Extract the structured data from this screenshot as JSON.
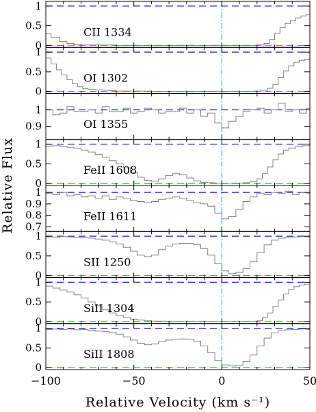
{
  "chart_data": {
    "type": "line",
    "xlabel": "Relative Velocity (km s⁻¹)",
    "ylabel": "Relative Flux",
    "xlim": [
      -100,
      50
    ],
    "x_ticks": [
      "−100",
      "−50",
      "0",
      "50"
    ],
    "x_tick_values": [
      -100,
      -50,
      0,
      50
    ],
    "zero_velocity_marker": 0,
    "colors": {
      "continuum": "#1a1acc",
      "zero_flux": "#22cc22",
      "velocity_marker": "#00cccc",
      "spectrum": "#808080",
      "frame": "#000000"
    },
    "panels": [
      {
        "label": "CII 1334",
        "ylim": [
          -0.05,
          1.12
        ],
        "yticks": [
          0,
          0.5,
          1
        ],
        "yticklabels": [
          "0",
          "0.5",
          "1"
        ],
        "x": [
          -100,
          -97,
          -92,
          -88,
          -84,
          -80,
          -70,
          -60,
          -50,
          -40,
          -30,
          -20,
          -10,
          0,
          10,
          20,
          24,
          27,
          30,
          33,
          36,
          39,
          42,
          45,
          48,
          50
        ],
        "y": [
          0.3,
          0.2,
          0.1,
          0.05,
          0.02,
          0.01,
          0.01,
          0.0,
          0.0,
          0.0,
          0.0,
          0.0,
          0.0,
          0.0,
          0.0,
          0.01,
          0.05,
          0.15,
          0.3,
          0.45,
          0.56,
          0.64,
          0.7,
          0.75,
          0.79,
          0.82
        ]
      },
      {
        "label": "OI 1302",
        "ylim": [
          -0.05,
          1.12
        ],
        "yticks": [
          0,
          0.5,
          1
        ],
        "yticklabels": [
          "0",
          "0.5",
          "1"
        ],
        "x": [
          -100,
          -97,
          -94,
          -91,
          -88,
          -85,
          -82,
          -79,
          -76,
          -72,
          -68,
          -64,
          -60,
          -50,
          -40,
          -30,
          -20,
          -10,
          0,
          10,
          18,
          22,
          26,
          29,
          32,
          35,
          38,
          41,
          44,
          47,
          50
        ],
        "y": [
          0.85,
          0.7,
          0.55,
          0.42,
          0.3,
          0.2,
          0.12,
          0.07,
          0.05,
          0.04,
          0.03,
          0.02,
          0.01,
          0.01,
          0.0,
          0.0,
          0.0,
          0.0,
          0.0,
          0.0,
          0.01,
          0.03,
          0.08,
          0.18,
          0.35,
          0.52,
          0.65,
          0.74,
          0.79,
          0.82,
          0.84
        ]
      },
      {
        "label": "OI 1355",
        "ylim": [
          0.82,
          1.1
        ],
        "yticks": [
          0.9,
          1
        ],
        "yticklabels": [
          "0.9",
          "1"
        ],
        "x": [
          -100,
          -96,
          -92,
          -88,
          -84,
          -80,
          -76,
          -72,
          -68,
          -64,
          -60,
          -56,
          -52,
          -48,
          -44,
          -40,
          -36,
          -32,
          -28,
          -24,
          -20,
          -16,
          -12,
          -8,
          -4,
          0,
          4,
          8,
          12,
          16,
          20,
          24,
          28,
          32,
          36,
          40,
          44,
          48,
          50
        ],
        "y": [
          1.0,
          0.97,
          0.98,
          1.02,
          0.99,
          0.99,
          1.0,
          0.98,
          1.02,
          0.99,
          0.99,
          1.01,
          0.98,
          0.99,
          1.01,
          1.0,
          0.98,
          0.99,
          0.99,
          1.01,
          0.98,
          1.0,
          0.96,
          0.98,
          0.92,
          0.89,
          0.93,
          0.96,
          0.99,
          1.0,
          1.01,
          0.98,
          1.0,
          1.04,
          0.99,
          1.0,
          0.98,
          1.01,
          1.0
        ]
      },
      {
        "label": "FeII 1608",
        "ylim": [
          -0.05,
          1.12
        ],
        "yticks": [
          0,
          0.5,
          1
        ],
        "yticklabels": [
          "0",
          "0.5",
          "1"
        ],
        "x": [
          -100,
          -96,
          -92,
          -88,
          -84,
          -80,
          -76,
          -72,
          -68,
          -64,
          -60,
          -56,
          -52,
          -48,
          -44,
          -40,
          -36,
          -32,
          -28,
          -24,
          -20,
          -16,
          -12,
          -8,
          -4,
          0,
          4,
          8,
          12,
          16,
          20,
          23,
          26,
          29,
          32,
          35,
          38,
          42,
          46,
          50
        ],
        "y": [
          0.95,
          0.96,
          0.94,
          0.92,
          0.9,
          0.85,
          0.8,
          0.74,
          0.67,
          0.58,
          0.5,
          0.4,
          0.28,
          0.16,
          0.08,
          0.06,
          0.12,
          0.2,
          0.25,
          0.22,
          0.14,
          0.07,
          0.03,
          0.02,
          0.01,
          0.01,
          0.01,
          0.01,
          0.02,
          0.05,
          0.12,
          0.25,
          0.42,
          0.6,
          0.75,
          0.85,
          0.9,
          0.94,
          0.96,
          0.97
        ]
      },
      {
        "label": "FeII 1611",
        "ylim": [
          0.66,
          1.06
        ],
        "yticks": [
          0.7,
          0.8,
          0.9,
          1
        ],
        "yticklabels": [
          "0.7",
          "0.8",
          "0.9",
          "1"
        ],
        "x": [
          -100,
          -96,
          -92,
          -88,
          -84,
          -80,
          -76,
          -72,
          -68,
          -64,
          -60,
          -56,
          -52,
          -48,
          -44,
          -40,
          -36,
          -32,
          -28,
          -24,
          -20,
          -16,
          -12,
          -8,
          -4,
          0,
          4,
          8,
          12,
          16,
          20,
          24,
          28,
          32,
          36,
          40,
          44,
          48,
          50
        ],
        "y": [
          0.99,
          0.98,
          1.0,
          0.97,
          0.98,
          0.96,
          0.97,
          0.95,
          0.97,
          0.94,
          0.96,
          0.95,
          0.93,
          0.92,
          0.91,
          0.92,
          0.94,
          0.95,
          0.96,
          0.95,
          0.93,
          0.91,
          0.9,
          0.88,
          0.82,
          0.77,
          0.79,
          0.85,
          0.92,
          0.96,
          0.99,
          0.98,
          1.0,
          0.99,
          1.01,
          0.98,
          1.0,
          0.99,
          1.0
        ]
      },
      {
        "label": "SII 1250",
        "ylim": [
          -0.05,
          1.12
        ],
        "yticks": [
          0,
          0.5,
          1
        ],
        "yticklabels": [
          "0",
          "0.5",
          "1"
        ],
        "x": [
          -100,
          -96,
          -92,
          -88,
          -84,
          -80,
          -76,
          -72,
          -68,
          -64,
          -60,
          -56,
          -52,
          -48,
          -44,
          -40,
          -36,
          -32,
          -28,
          -24,
          -20,
          -16,
          -12,
          -8,
          -4,
          0,
          4,
          8,
          12,
          16,
          20,
          24,
          28,
          32,
          36,
          40,
          44,
          48,
          50
        ],
        "y": [
          0.98,
          0.97,
          0.99,
          0.98,
          0.97,
          0.96,
          0.95,
          0.93,
          0.9,
          0.86,
          0.8,
          0.72,
          0.62,
          0.52,
          0.48,
          0.52,
          0.66,
          0.75,
          0.8,
          0.82,
          0.82,
          0.78,
          0.68,
          0.52,
          0.3,
          0.12,
          0.05,
          0.08,
          0.18,
          0.35,
          0.58,
          0.78,
          0.9,
          0.95,
          0.97,
          0.98,
          0.99,
          0.98,
          0.99
        ]
      },
      {
        "label": "SiII 1304",
        "ylim": [
          -0.05,
          1.12
        ],
        "yticks": [
          0,
          0.5,
          1
        ],
        "yticklabels": [
          "0",
          "0.5",
          "1"
        ],
        "x": [
          -100,
          -96,
          -92,
          -88,
          -84,
          -80,
          -76,
          -72,
          -68,
          -64,
          -60,
          -56,
          -52,
          -48,
          -44,
          -40,
          -36,
          -32,
          -28,
          -24,
          -20,
          -10,
          0,
          10,
          20,
          23,
          26,
          29,
          32,
          35,
          38,
          41,
          44,
          47,
          50
        ],
        "y": [
          0.9,
          0.85,
          0.8,
          0.75,
          0.68,
          0.6,
          0.5,
          0.4,
          0.3,
          0.22,
          0.15,
          0.1,
          0.06,
          0.04,
          0.02,
          0.01,
          0.01,
          0.0,
          0.0,
          0.0,
          0.0,
          0.0,
          0.0,
          0.0,
          0.02,
          0.1,
          0.22,
          0.38,
          0.55,
          0.7,
          0.82,
          0.89,
          0.93,
          0.95,
          0.96
        ]
      },
      {
        "label": "SiII 1808",
        "ylim": [
          -0.05,
          1.12
        ],
        "yticks": [
          0,
          0.5,
          1
        ],
        "yticklabels": [
          "0",
          "0.5",
          "1"
        ],
        "x": [
          -100,
          -96,
          -92,
          -88,
          -84,
          -80,
          -76,
          -72,
          -68,
          -64,
          -60,
          -56,
          -52,
          -48,
          -44,
          -40,
          -36,
          -32,
          -28,
          -24,
          -20,
          -16,
          -12,
          -8,
          -4,
          0,
          4,
          8,
          12,
          16,
          20,
          24,
          28,
          32,
          36,
          40,
          44,
          48,
          50
        ],
        "y": [
          0.97,
          0.98,
          0.97,
          0.98,
          0.96,
          0.97,
          0.95,
          0.93,
          0.92,
          0.89,
          0.85,
          0.78,
          0.7,
          0.62,
          0.58,
          0.6,
          0.66,
          0.7,
          0.72,
          0.73,
          0.72,
          0.67,
          0.55,
          0.38,
          0.18,
          0.07,
          0.04,
          0.06,
          0.15,
          0.32,
          0.55,
          0.75,
          0.88,
          0.94,
          0.96,
          0.97,
          0.98,
          0.97,
          0.98
        ]
      }
    ]
  }
}
